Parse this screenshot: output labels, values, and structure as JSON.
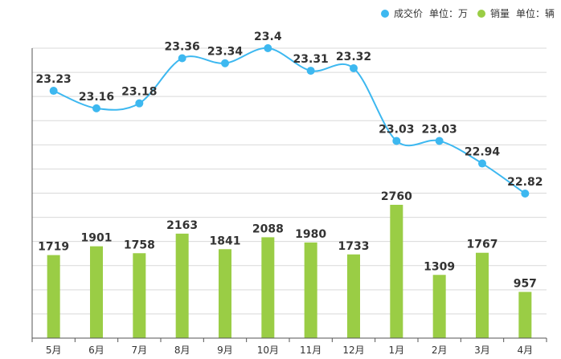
{
  "chart_data": {
    "type": "bar+line",
    "categories": [
      "5月",
      "6月",
      "7月",
      "8月",
      "9月",
      "10月",
      "11月",
      "12月",
      "1月",
      "2月",
      "3月",
      "4月"
    ],
    "series": [
      {
        "name": "成交价",
        "unit_label": "单位：万",
        "type": "line",
        "color": "#3db8f0",
        "values": [
          23.23,
          23.16,
          23.18,
          23.36,
          23.34,
          23.4,
          23.31,
          23.32,
          23.03,
          23.03,
          22.94,
          22.82
        ],
        "labels": [
          "23.23",
          "23.16",
          "23.18",
          "23.36",
          "23.34",
          "23.4",
          "23.31",
          "23.32",
          "23.03",
          "23.03",
          "22.94",
          "22.82"
        ]
      },
      {
        "name": "销量",
        "unit_label": "单位：辆",
        "type": "bar",
        "color": "#9acd45",
        "values": [
          1719,
          1901,
          1758,
          2163,
          1841,
          2088,
          1980,
          1733,
          2760,
          1309,
          1767,
          957
        ],
        "labels": [
          "1719",
          "1901",
          "1758",
          "2163",
          "1841",
          "2088",
          "1980",
          "1733",
          "2760",
          "1309",
          "1767",
          "957"
        ]
      }
    ],
    "grid": true,
    "legend_position": "top-right"
  }
}
